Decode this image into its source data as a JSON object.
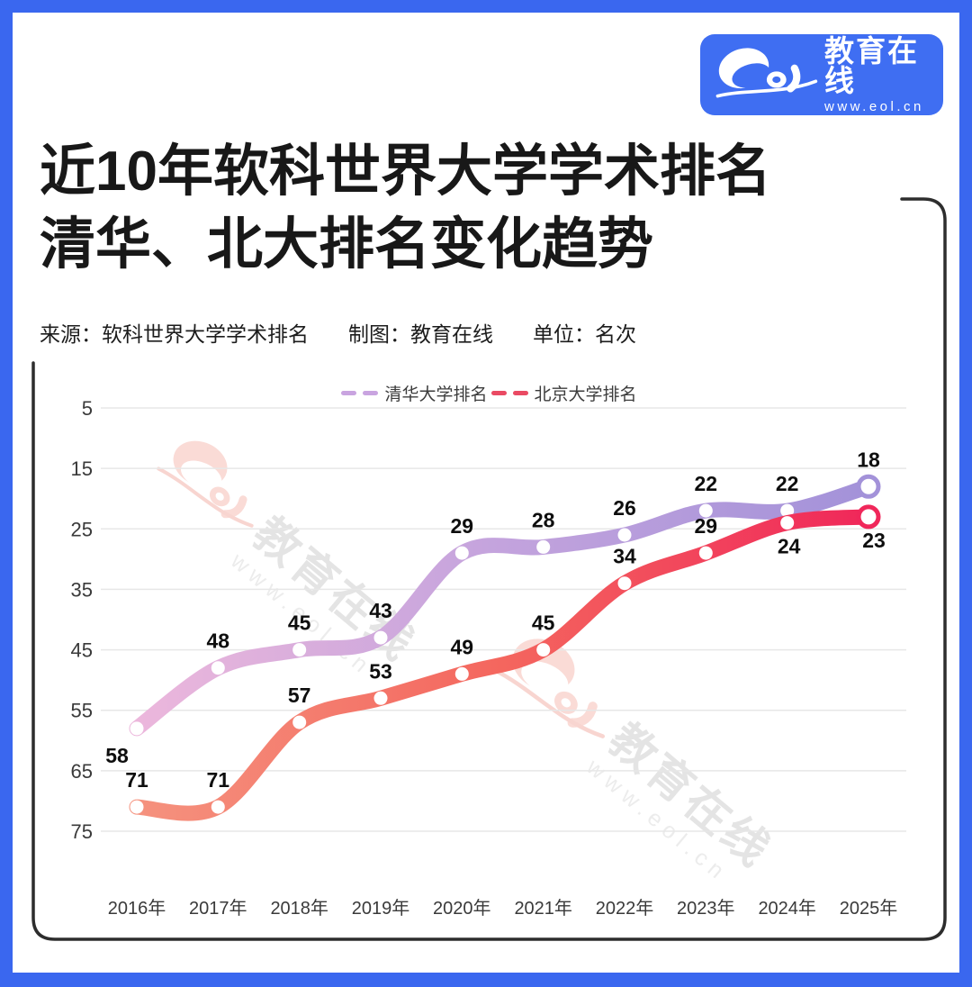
{
  "header": {
    "brand_name": "教育在线",
    "brand_url": "www.eol.cn",
    "title_line1": "近10年软科世界大学学术排名",
    "title_line2": "清华、北大排名变化趋势",
    "meta": [
      "来源：软科世界大学学术排名",
      "制图：教育在线",
      "单位：名次"
    ]
  },
  "watermark": {
    "text": "教育在线",
    "url": "www.eol.cn"
  },
  "colors": {
    "frame_blue": "#3a67ef",
    "badge_blue": "#3f6ef2",
    "grid_line": "#e7e7e7",
    "tick_text": "#3a3a3a",
    "data_label_text": "#0e0e0e",
    "connector_line": "#2d2d2d"
  },
  "chart_data": {
    "type": "line",
    "title": "近10年软科世界大学学术排名 清华、北大排名变化趋势",
    "xlabel": "",
    "ylabel": "名次",
    "unit": "名次",
    "categories": [
      "2016年",
      "2017年",
      "2018年",
      "2019年",
      "2020年",
      "2021年",
      "2022年",
      "2023年",
      "2024年",
      "2025年"
    ],
    "y_ticks": [
      5,
      15,
      25,
      35,
      45,
      55,
      65,
      75
    ],
    "ylim": [
      5,
      75
    ],
    "y_axis_inverted": true,
    "grid": true,
    "legend_position": "top-center",
    "series": [
      {
        "name": "清华大学排名",
        "values": [
          58,
          48,
          45,
          43,
          29,
          28,
          26,
          22,
          22,
          18
        ],
        "legend_color": "#c9a4e0",
        "gradient": [
          "#ecb7dc",
          "#c3a3dd",
          "#a392d9"
        ]
      },
      {
        "name": "北京大学排名",
        "values": [
          71,
          71,
          57,
          53,
          49,
          45,
          34,
          29,
          24,
          23
        ],
        "legend_color": "#ea4a63",
        "gradient": [
          "#f5927e",
          "#f4665e",
          "#f0275a"
        ]
      }
    ]
  }
}
